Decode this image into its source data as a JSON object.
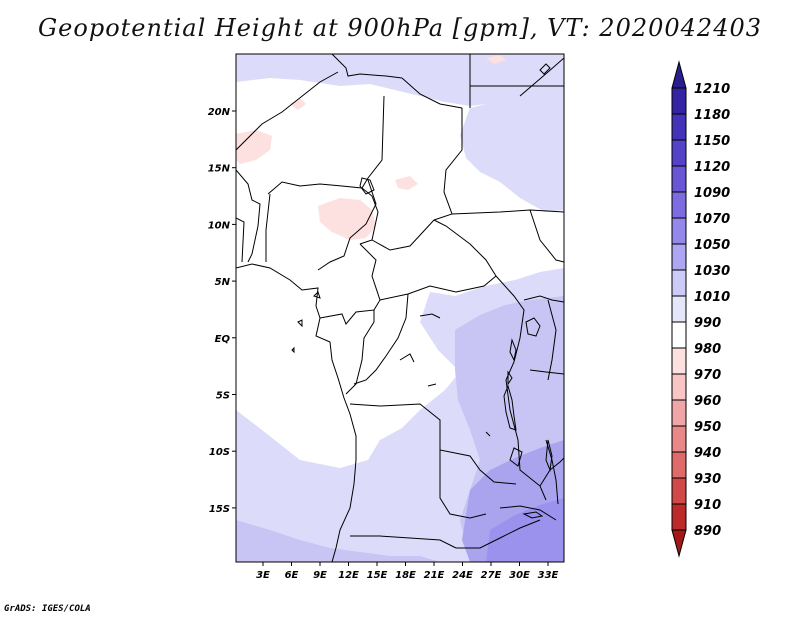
{
  "title": "Geopotential Height at 900hPa [gpm], VT: 2020042403",
  "credit": "GrADS: IGES/COLA",
  "map": {
    "lon_labels": [
      "3E",
      "6E",
      "9E",
      "12E",
      "15E",
      "18E",
      "21E",
      "24E",
      "27E",
      "30E",
      "33E"
    ],
    "lat_labels": [
      "20N",
      "15N",
      "10N",
      "5N",
      "EQ",
      "5S",
      "10S",
      "15S"
    ]
  },
  "colorbar": {
    "levels": [
      "1210",
      "1180",
      "1150",
      "1120",
      "1090",
      "1070",
      "1050",
      "1030",
      "1010",
      "990",
      "980",
      "970",
      "960",
      "950",
      "940",
      "930",
      "910",
      "890"
    ],
    "colors": [
      "#2a1e8e",
      "#3424a4",
      "#4432b8",
      "#5443c8",
      "#6856d4",
      "#7c6ce0",
      "#9488ea",
      "#aea6f0",
      "#cccaf6",
      "#e6e6fa",
      "#ffffff",
      "#fde0e0",
      "#f8c4c4",
      "#f0a6a6",
      "#e88888",
      "#de6a6a",
      "#d04848",
      "#bc2a2a",
      "#a41818"
    ]
  },
  "colors": {
    "lavender_light": "#dcdcfa",
    "lavender_mid": "#b8b4f2",
    "lavender_dark": "#a39cee",
    "pink": "#fde4e4"
  }
}
